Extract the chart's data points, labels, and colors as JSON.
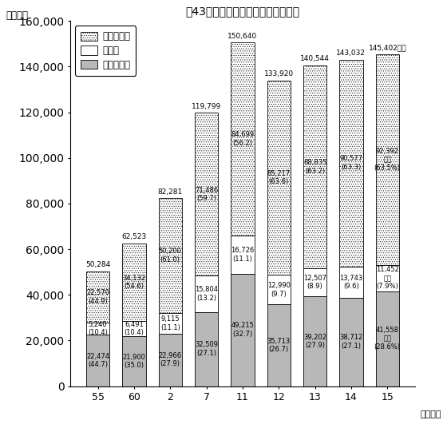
{
  "title": "第43図　民生費の財源構成比の推移",
  "ylabel": "（億円）",
  "xlabel_suffix": "（年度）",
  "categories": [
    "55",
    "60",
    "2",
    "7",
    "11",
    "12",
    "13",
    "14",
    "15"
  ],
  "kokko": [
    22474,
    21900,
    22966,
    32509,
    49215,
    35713,
    39202,
    38712,
    41558
  ],
  "sonota": [
    5240,
    6491,
    9115,
    15804,
    16726,
    12990,
    12507,
    13743,
    11452
  ],
  "ippan": [
    22570,
    34132,
    50200,
    71486,
    84699,
    85217,
    88835,
    90577,
    92392
  ],
  "totals": [
    50284,
    62523,
    82281,
    119799,
    150640,
    133920,
    140544,
    143032,
    145402
  ],
  "kokko_labels": [
    "22,474\n(44.7)",
    "21,900\n(35.0)",
    "22,966\n(27.9)",
    "32,509\n(27.1)",
    "49,215\n(32.7)",
    "35,713\n(26.7)",
    "39,202\n(27.9)",
    "38,712\n(27.1)",
    "41,558\n億円\n(28.6%)"
  ],
  "sonota_labels": [
    "5,240\n(10.4)",
    "6,491\n(10.4)",
    "9,115\n(11.1)",
    "15,804\n(13.2)",
    "16,726\n(11.1)",
    "12,990\n(9.7)",
    "12,507\n(8.9)",
    "13,743\n(9.6)",
    "11,452\n億円\n(7.9%)"
  ],
  "ippan_labels": [
    "22,570\n(44.9)",
    "34,132\n(54.6)",
    "50,200\n(61.0)",
    "71,486\n(59.7)",
    "84,699\n(56.2)",
    "85,217\n(63.6)",
    "88,835\n(63.2)",
    "90,577\n(63.3)",
    "92,392\n億円\n(63.5%)"
  ],
  "total_labels": [
    "50,284",
    "62,523",
    "82,281",
    "119,799",
    "150,640",
    "133,920",
    "140,544",
    "143,032",
    "145,402億円"
  ],
  "ylim": [
    0,
    160000
  ],
  "yticks": [
    0,
    20000,
    40000,
    60000,
    80000,
    100000,
    120000,
    140000,
    160000
  ],
  "color_kokko": "#b8b8b8",
  "bar_width": 0.65,
  "legend_labels": [
    "一般財源等",
    "その他",
    "国庫支出金"
  ]
}
